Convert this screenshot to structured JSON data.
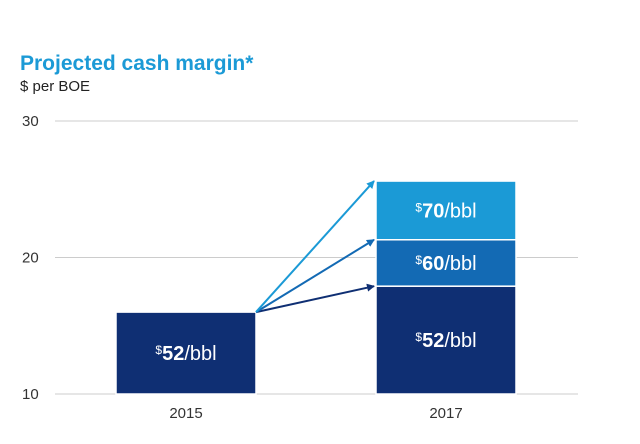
{
  "chart_data": {
    "type": "bar",
    "title": "Projected cash margin*",
    "ylabel": "$ per BOE",
    "ylim": [
      10,
      30
    ],
    "yticks": [
      "10",
      "20",
      "30"
    ],
    "categories": [
      "2015",
      "2017"
    ],
    "bars": [
      {
        "category": "2015",
        "segments": [
          {
            "name": "$52/bbl",
            "prefix": "$",
            "amount": "52",
            "suffix": "/bbl",
            "from": 10,
            "to": 16.0,
            "color": "#0f2f73"
          }
        ]
      },
      {
        "category": "2017",
        "segments": [
          {
            "name": "$52/bbl",
            "prefix": "$",
            "amount": "52",
            "suffix": "/bbl",
            "from": 10,
            "to": 17.9,
            "color": "#0f2f73"
          },
          {
            "name": "$60/bbl",
            "prefix": "$",
            "amount": "60",
            "suffix": "/bbl",
            "from": 17.9,
            "to": 21.3,
            "color": "#136ab4"
          },
          {
            "name": "$70/bbl",
            "prefix": "$",
            "amount": "70",
            "suffix": "/bbl",
            "from": 21.3,
            "to": 25.6,
            "color": "#1b9ad6"
          }
        ]
      }
    ],
    "arrows": [
      {
        "from_value": 16.0,
        "to_value": 17.9,
        "color": "#0f2f73"
      },
      {
        "from_value": 16.0,
        "to_value": 21.3,
        "color": "#136ab4"
      },
      {
        "from_value": 16.0,
        "to_value": 25.6,
        "color": "#1b9ad6"
      }
    ],
    "grid": true,
    "gridline_color": "#cccccc"
  }
}
